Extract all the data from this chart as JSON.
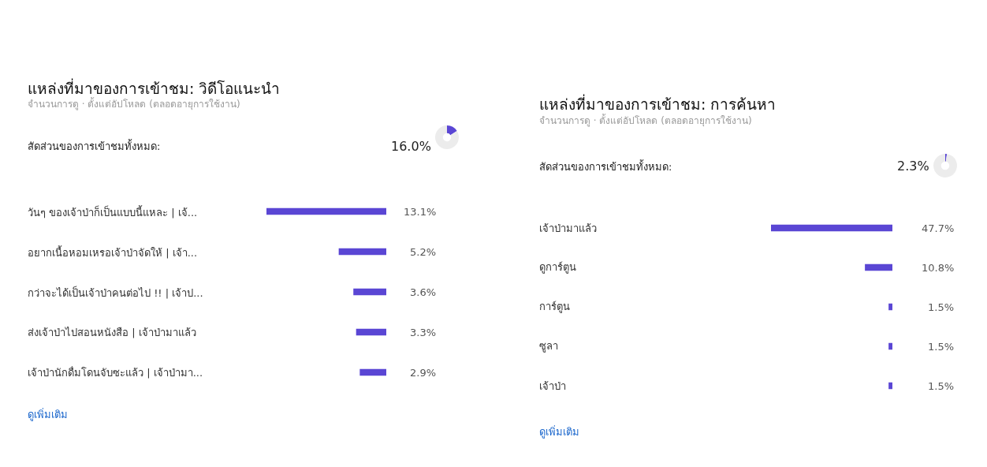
{
  "chart_data": [
    {
      "type": "bar",
      "orientation": "horizontal",
      "title": "แหล่งที่มาของการเข้าชม: วิดีโอแนะนำ",
      "subtitle": "จำนวนการดู · ตั้งแต่อัปโหลด (ตลอดอายุการใช้งาน)",
      "categories": [
        "วันๆ ของเจ้าป่าก็เป็นแบบนี้แหละ | เจ้...",
        "อยากเนื้อหอมเหรอเจ้าป่าจัดให้ | เจ้า...",
        "กว่าจะได้เป็นเจ้าป่าคนต่อไป !! | เจ้าป...",
        "ส่งเจ้าป่าไปสอนหนังสือ | เจ้าป่ามาแล้ว",
        "เจ้าป่านักดื่มโดนจับซะแล้ว | เจ้าป่ามา..."
      ],
      "values": [
        13.1,
        5.2,
        3.6,
        3.3,
        2.9
      ],
      "color": "#5a46d4",
      "value_labels": [
        "13.1%",
        "5.2%",
        "3.6%",
        "3.3%",
        "2.9%"
      ],
      "annotations": [
        "ดูเพิ่มเติม"
      ]
    },
    {
      "type": "donut",
      "categories": [
        null,
        null
      ],
      "values": [
        16.0,
        84.0
      ],
      "colors": [
        "#5a46d4",
        "#ececec"
      ],
      "annotations": [
        "สัดส่วนของการเข้าชมทั้งหมด:",
        "16.0%"
      ]
    },
    {
      "type": "bar",
      "orientation": "horizontal",
      "title": "แหล่งที่มาของการเข้าชม: การค้นหา",
      "subtitle": "จำนวนการดู · ตั้งแต่อัปโหลด (ตลอดอายุการใช้งาน)",
      "categories": [
        "เจ้าป่ามาแล้ว",
        "ดูการ์ตูน",
        "การ์ตูน",
        "ซูลา",
        "เจ้าป่า"
      ],
      "values": [
        47.7,
        10.8,
        1.5,
        1.5,
        1.5
      ],
      "color": "#5a46d4",
      "value_labels": [
        "47.7%",
        "10.8%",
        "1.5%",
        "1.5%",
        "1.5%"
      ],
      "annotations": [
        "ดูเพิ่มเติม"
      ]
    },
    {
      "type": "donut",
      "categories": [
        null,
        null
      ],
      "values": [
        2.3,
        97.7
      ],
      "colors": [
        "#5a46d4",
        "#ececec"
      ],
      "annotations": [
        "สัดส่วนของการเข้าชมทั้งหมด:",
        "2.3%"
      ]
    }
  ]
}
